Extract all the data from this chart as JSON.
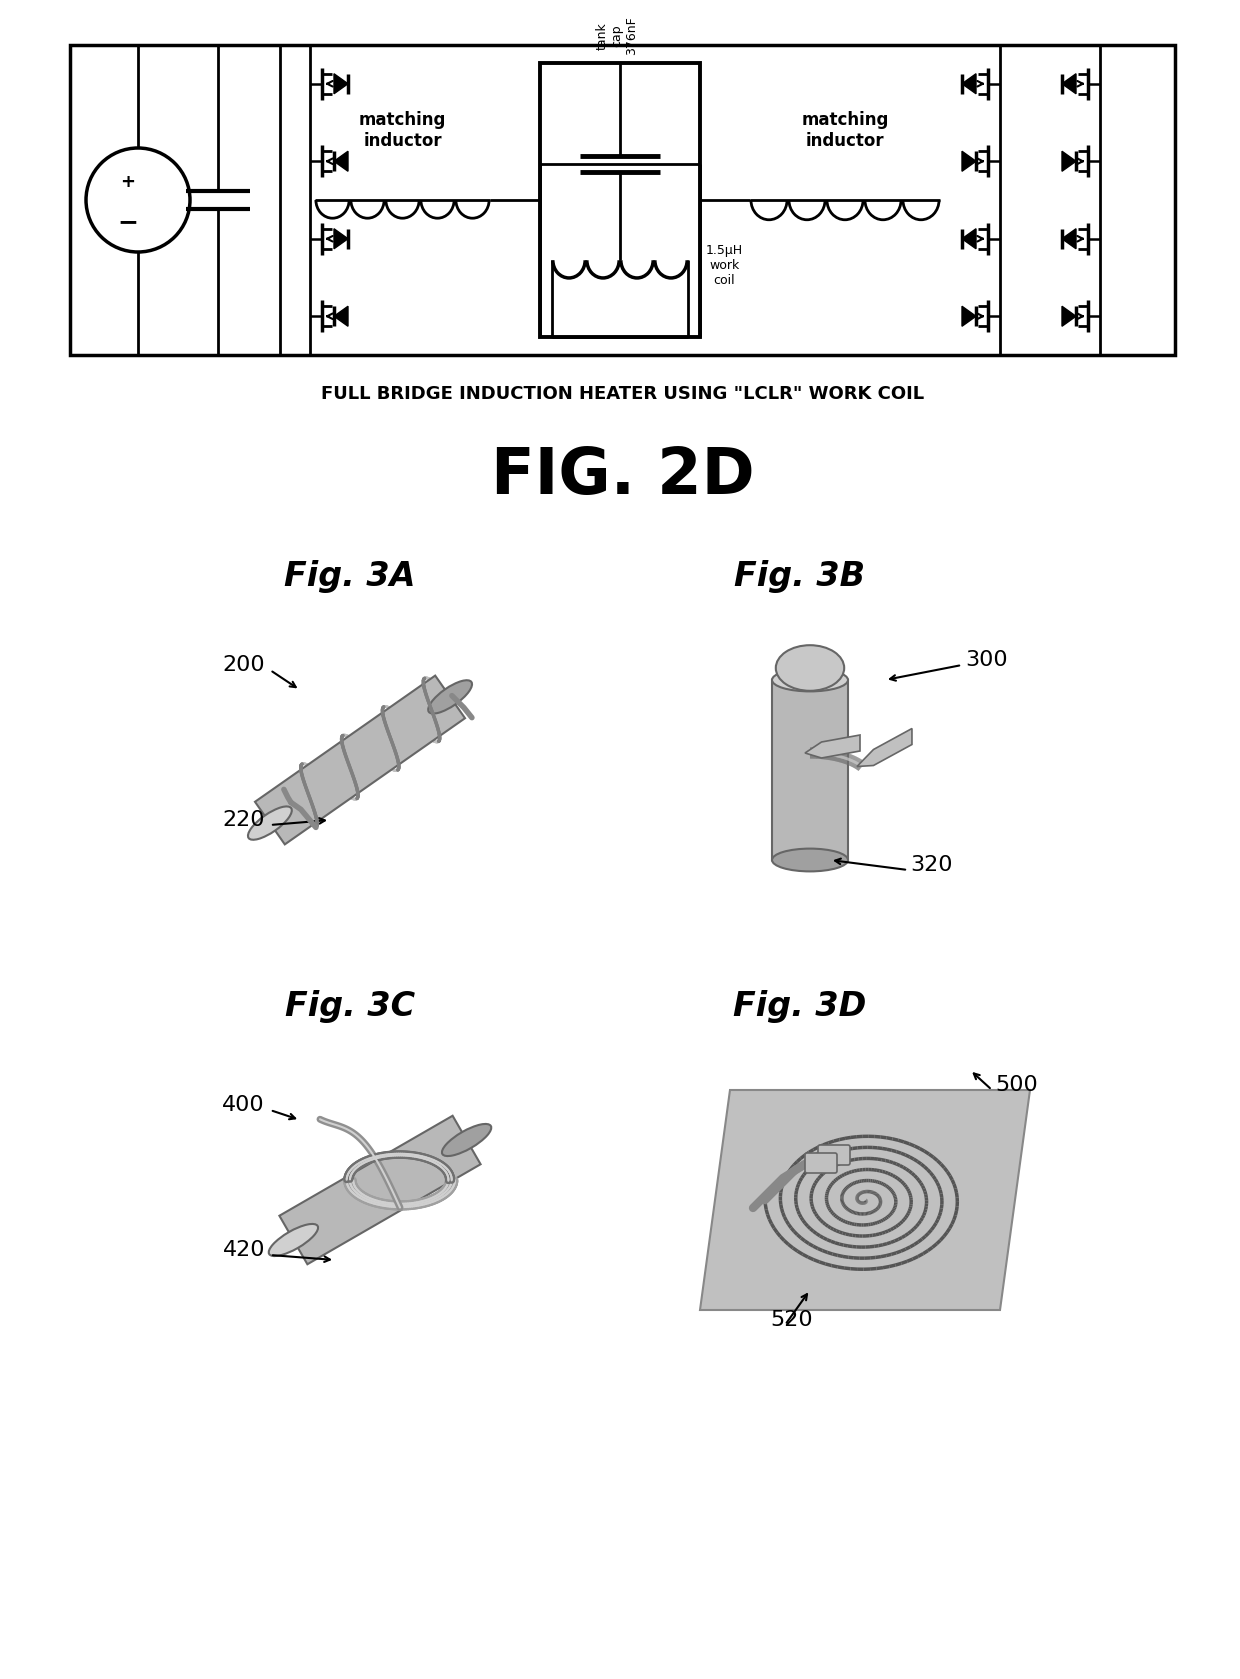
{
  "bg_color": "#ffffff",
  "fig_width": 12.4,
  "fig_height": 16.79,
  "circuit_caption": "FULL BRIDGE INDUCTION HEATER USING \"LCLR\" WORK COIL",
  "fig_label_2d": "FIG. 2D",
  "fig_3a_label": "Fig. 3A",
  "fig_3b_label": "Fig. 3B",
  "fig_3c_label": "Fig. 3C",
  "fig_3d_label": "Fig. 3D",
  "ref_200": "200",
  "ref_220": "220",
  "ref_300": "300",
  "ref_320": "320",
  "ref_400": "400",
  "ref_420": "420",
  "ref_500": "500",
  "ref_520": "520",
  "text_matching_inductor_left": "matching\ninductor",
  "text_matching_inductor_right": "matching\ninductor",
  "text_tank_cap": "tank\ncap\n376nF",
  "text_work_coil": "1.5μH\nwork\ncoil",
  "line_color": "#000000",
  "cyl_color": "#b4b4b4",
  "cyl_edge": "#666666",
  "cyl_top": "#d0d0d0",
  "coil_dark": "#707070",
  "coil_mid": "#909090",
  "coil_light": "#b0b0b0",
  "substrate_color": "#c8c8c8"
}
